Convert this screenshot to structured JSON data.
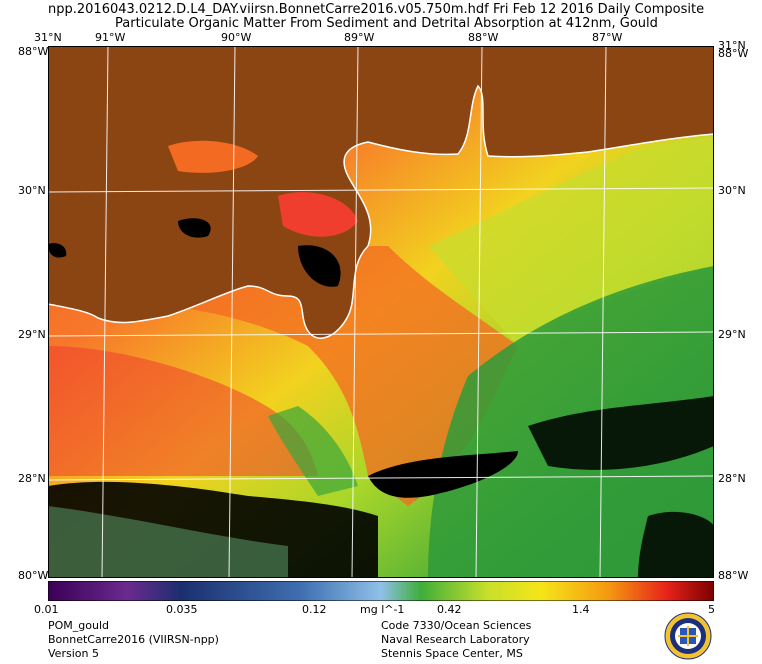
{
  "header": {
    "filename": "npp.2016043.0212.D.L4_DAY.viirsn.BonnetCarre2016.v05.750m.hdf",
    "date": "Fri Feb 12 2016 Daily Composite",
    "product": "Particulate Organic Matter From Sediment and Detrital Absorption at 412nm, Gould"
  },
  "map": {
    "lon_labels": [
      "91°W",
      "90°W",
      "89°W",
      "88°W",
      "87°W"
    ],
    "lat_labels": [
      "30°N",
      "29°N",
      "28°N"
    ],
    "corner_top_left": "31°N",
    "corner_top_left_lon": "88°W",
    "corner_top_right": "31°N",
    "corner_top_right_lon": "88°W",
    "corner_bottom_left": "80°W",
    "corner_bottom_right": "88°W",
    "colors": {
      "land": "#8b4513",
      "nodata": "#000000",
      "coast": "#ffffff",
      "grid": "#ffffff"
    }
  },
  "colorbar": {
    "ticks": [
      "0.01",
      "0.035",
      "0.12",
      "0.42",
      "1.4",
      "5"
    ],
    "unit": "mg l^-1",
    "stops": [
      "#3b0055",
      "#6a2a8f",
      "#1b2f6e",
      "#3f6fb0",
      "#8fc0e8",
      "#3fae3a",
      "#c7e02a",
      "#f5e51a",
      "#f59a10",
      "#e6221a",
      "#7a0000"
    ]
  },
  "footer": {
    "left": [
      "POM_gould",
      "BonnetCarre2016 (VIIRSN-npp)",
      "Version 5"
    ],
    "right": [
      "Code 7330/Ocean Sciences",
      "Naval Research Laboratory",
      "Stennis Space Center, MS"
    ]
  },
  "seal": {
    "name": "nrl-seal-icon"
  }
}
